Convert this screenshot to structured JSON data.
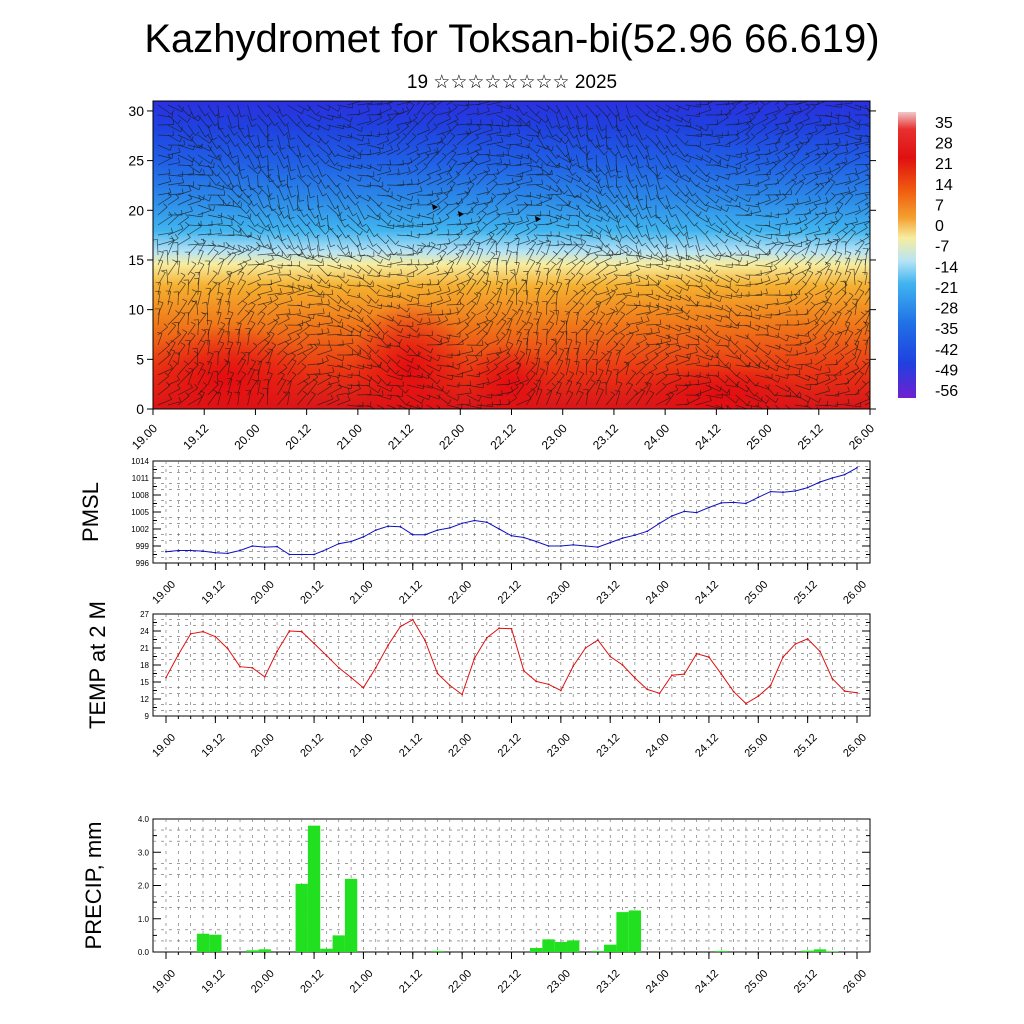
{
  "title": "Kazhydromet for Toksan-bi(52.96 66.619)",
  "subtitle": "19 ☆☆☆☆☆☆☆☆ 2025",
  "chart_data": [
    {
      "type": "heatmap",
      "description_free": true,
      "x_ticks": [
        "19.00",
        "19.12",
        "20.00",
        "20.12",
        "21.00",
        "21.12",
        "22.00",
        "22.12",
        "23.00",
        "23.12",
        "24.00",
        "24.12",
        "25.00",
        "25.12",
        "26.00"
      ],
      "y_ticks": [
        "0",
        "5",
        "10",
        "15",
        "20",
        "25",
        "30"
      ],
      "ylim": [
        0,
        31
      ],
      "colorbar_labels": [
        "35",
        "28",
        "21",
        "14",
        "7",
        "0",
        "-7",
        "-14",
        "-21",
        "-28",
        "-35",
        "-42",
        "-49",
        "-56"
      ],
      "colors": {
        "hot": "#e81410",
        "warm": "#f08020",
        "mild": "#f5e080",
        "cool": "#30b0f0",
        "cold": "#2050e8",
        "coldest": "#4010d0"
      }
    },
    {
      "type": "line",
      "ylabel": "PMSL",
      "ylim": [
        996,
        1014
      ],
      "y_ticks": [
        "996",
        "999",
        "1002",
        "1005",
        "1008",
        "1011",
        "1014"
      ],
      "x_ticks": [
        "19.00",
        "19.12",
        "20.00",
        "20.12",
        "21.00",
        "21.12",
        "22.00",
        "22.12",
        "23.00",
        "23.12",
        "24.00",
        "24.12",
        "25.00",
        "25.12",
        "26.00"
      ],
      "color": "#1010c0",
      "series": [
        {
          "values": [
            998,
            998.2,
            998.2,
            998.1,
            997.8,
            997.7,
            998.2,
            999.0,
            998.8,
            998.9,
            997.5,
            997.5,
            997.5,
            998.4,
            999.4,
            999.8,
            1000.6,
            1001.8,
            1002.5,
            1002.4,
            1001.0,
            1001.0,
            1001.8,
            1002.2,
            1003.0,
            1003.5,
            1003.2,
            1002.0,
            1000.8,
            1000.5,
            999.8,
            999.0,
            999.0,
            999.2,
            999.0,
            998.8,
            999.6,
            1000.4,
            1000.9,
            1001.6,
            1003.0,
            1004.3,
            1005.1,
            1004.9,
            1005.8,
            1006.6,
            1006.7,
            1006.5,
            1007.6,
            1008.6,
            1008.5,
            1008.7,
            1009.3,
            1010.3,
            1011.0,
            1011.6,
            1012.8
          ]
        }
      ]
    },
    {
      "type": "line",
      "ylabel": "TEMP at 2 M",
      "ylim": [
        9,
        27
      ],
      "y_ticks": [
        "9",
        "12",
        "15",
        "18",
        "21",
        "24",
        "27"
      ],
      "x_ticks": [
        "19.00",
        "19.12",
        "20.00",
        "20.12",
        "21.00",
        "21.12",
        "22.00",
        "22.12",
        "23.00",
        "23.12",
        "24.00",
        "24.12",
        "25.00",
        "25.12",
        "26.00"
      ],
      "color": "#e01010",
      "series": [
        {
          "values": [
            15.8,
            19.8,
            23.5,
            23.9,
            23.0,
            20.9,
            17.7,
            17.5,
            15.9,
            20.4,
            24.0,
            23.9,
            21.8,
            19.7,
            17.5,
            15.8,
            14.0,
            17.5,
            21.5,
            24.8,
            26.0,
            22.3,
            16.5,
            14.4,
            12.8,
            19.2,
            22.8,
            24.5,
            24.4,
            17.0,
            15.1,
            14.6,
            13.5,
            17.8,
            21.0,
            22.4,
            19.5,
            18.0,
            15.7,
            13.7,
            13.0,
            16.2,
            16.4,
            20.0,
            19.4,
            16.4,
            13.3,
            11.2,
            12.5,
            14.4,
            19.4,
            21.7,
            22.6,
            20.4,
            15.6,
            13.4,
            13.1
          ]
        }
      ]
    },
    {
      "type": "bar",
      "ylabel": "PRECIP, mm",
      "ylim": [
        0,
        4
      ],
      "y_ticks": [
        "0.0",
        "1.0",
        "2.0",
        "3.0",
        "4.0"
      ],
      "x_ticks": [
        "19.00",
        "19.12",
        "20.00",
        "20.12",
        "21.00",
        "21.12",
        "22.00",
        "22.12",
        "23.00",
        "23.12",
        "24.00",
        "24.12",
        "25.00",
        "25.12",
        "26.00"
      ],
      "color": "#20e020",
      "series": [
        {
          "values": [
            0,
            0,
            0,
            0.55,
            0.52,
            0,
            0,
            0.05,
            0.08,
            0,
            0,
            2.05,
            3.8,
            0.1,
            0.5,
            2.2,
            0,
            0,
            0,
            0,
            0,
            0,
            0.03,
            0,
            0,
            0,
            0,
            0,
            0,
            0,
            0.12,
            0.38,
            0.3,
            0.35,
            0,
            0.03,
            0.22,
            1.2,
            1.25,
            0,
            0,
            0,
            0,
            0,
            0,
            0.03,
            0,
            0,
            0,
            0,
            0,
            0,
            0.04,
            0.08,
            0.02,
            0,
            0
          ]
        }
      ]
    }
  ]
}
